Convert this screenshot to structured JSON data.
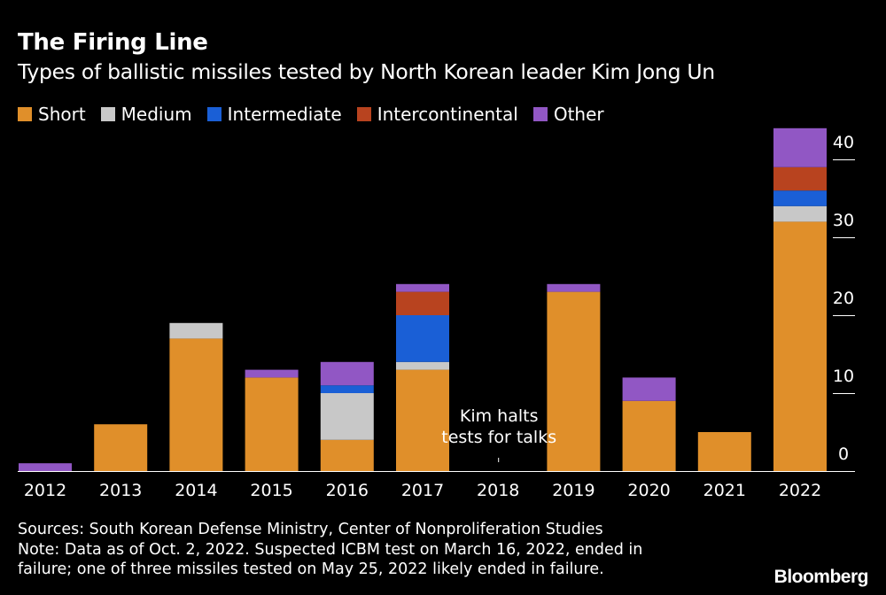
{
  "title": "The Firing Line",
  "subtitle": "Types of ballistic missiles tested by North Korean leader Kim Jong Un",
  "sources": "Sources: South Korean Defense Ministry, Center of Nonproliferation Studies",
  "note_line1": "Note: Data as of Oct. 2, 2022. Suspected ICBM test on March 16, 2022, ended in",
  "note_line2": "failure; one of three missiles tested on May 25, 2022 likely ended in failure.",
  "brand": "Bloomberg",
  "chart_data": {
    "type": "bar",
    "stacked": true,
    "categories": [
      "2012",
      "2013",
      "2014",
      "2015",
      "2016",
      "2017",
      "2018",
      "2019",
      "2020",
      "2021",
      "2022"
    ],
    "series": [
      {
        "name": "Short",
        "color": "#e08f2a",
        "values": [
          0,
          6,
          17,
          12,
          4,
          13,
          0,
          23,
          9,
          5,
          32
        ]
      },
      {
        "name": "Medium",
        "color": "#c8c8c8",
        "values": [
          0,
          0,
          2,
          0,
          6,
          1,
          0,
          0,
          0,
          0,
          2
        ]
      },
      {
        "name": "Intermediate",
        "color": "#1a5fd6",
        "values": [
          0,
          0,
          0,
          0,
          1,
          6,
          0,
          0,
          0,
          0,
          2
        ]
      },
      {
        "name": "Intercontinental",
        "color": "#b8431f",
        "values": [
          0,
          0,
          0,
          0,
          0,
          3,
          0,
          0,
          0,
          0,
          3
        ]
      },
      {
        "name": "Other",
        "color": "#9157c4",
        "values": [
          1,
          0,
          0,
          1,
          3,
          1,
          0,
          1,
          3,
          0,
          5
        ]
      }
    ],
    "yticks": [
      0,
      10,
      20,
      30,
      40
    ],
    "ylim": [
      0,
      44
    ],
    "yaxis_position": "right",
    "legend_position": "top-left",
    "grid": false,
    "annotation": {
      "text_line1": "Kim halts",
      "text_line2": "tests for talks",
      "category": "2018"
    }
  }
}
